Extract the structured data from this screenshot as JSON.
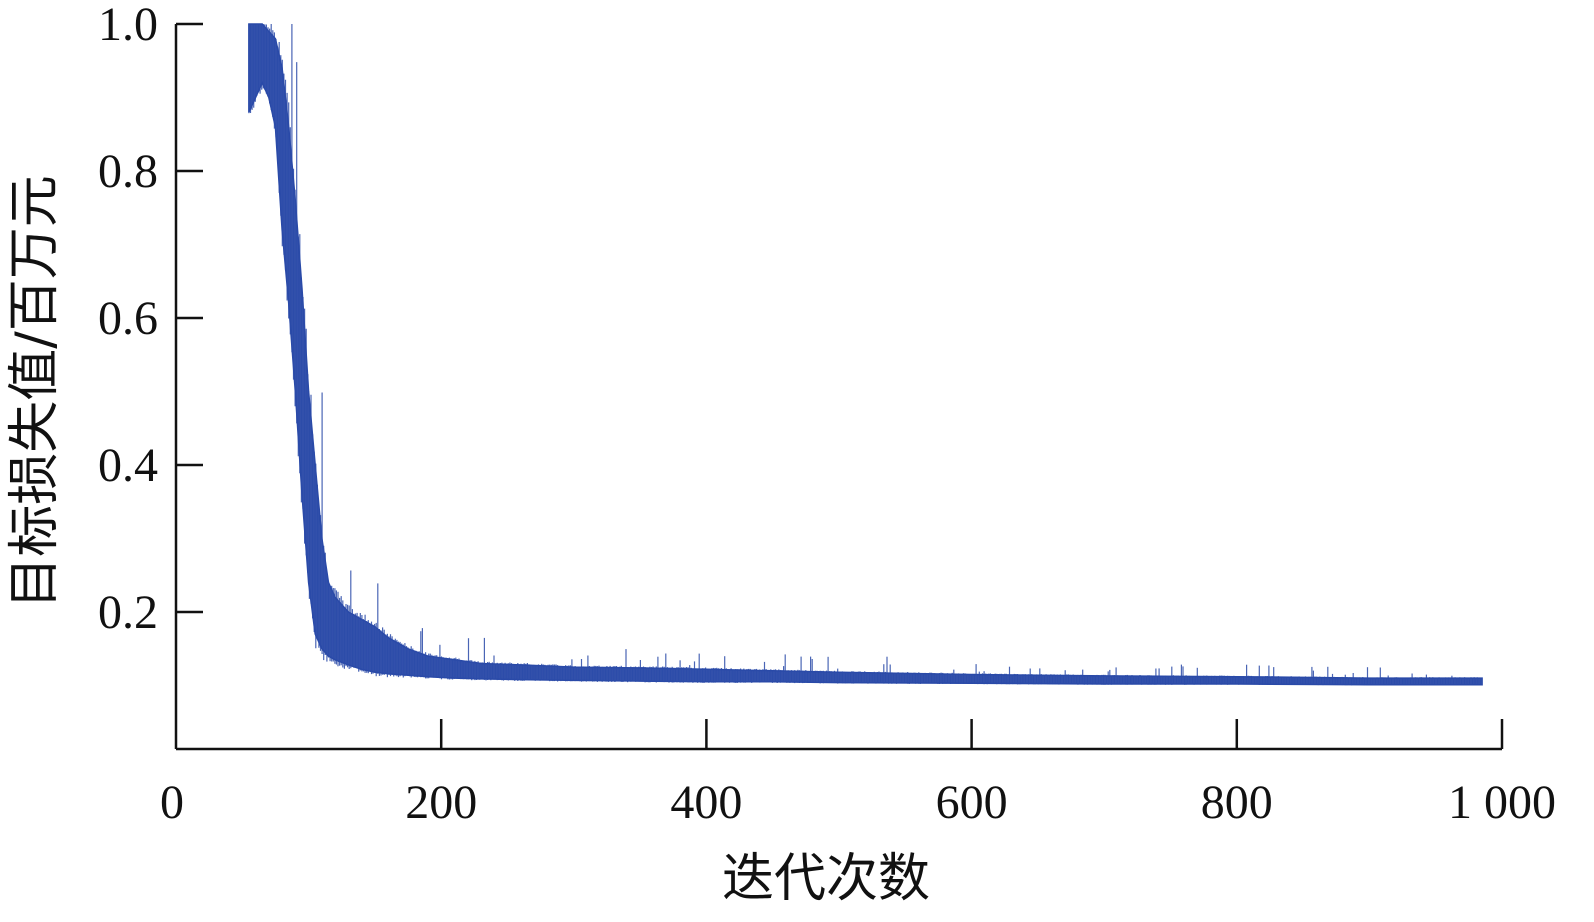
{
  "chart_data": {
    "type": "line",
    "title": "",
    "xlabel": "迭代次数",
    "ylabel": "目标损失值/百万元",
    "xlim": [
      0,
      1000
    ],
    "ylim": [
      0.0,
      1.0
    ],
    "x_ticks": [
      0,
      200,
      400,
      600,
      800,
      1000
    ],
    "x_tick_labels": [
      "0",
      "200",
      "400",
      "600",
      "800",
      "1 000"
    ],
    "y_ticks": [
      0.2,
      0.4,
      0.6,
      0.8,
      1.0
    ],
    "y_tick_labels": [
      "0.2",
      "0.4",
      "0.6",
      "0.8",
      "1.0"
    ],
    "grid": false,
    "series": [
      {
        "color": "#2a4aa8",
        "x": [
          55,
          60,
          65,
          70,
          75,
          80,
          85,
          90,
          95,
          100,
          105,
          110,
          115,
          120,
          130,
          140,
          150,
          160,
          175,
          190,
          210,
          230,
          260,
          300,
          350,
          400,
          450,
          500,
          600,
          700,
          800,
          900,
          985
        ],
        "y_low": [
          0.88,
          0.9,
          0.92,
          0.9,
          0.86,
          0.72,
          0.62,
          0.5,
          0.36,
          0.24,
          0.17,
          0.15,
          0.14,
          0.135,
          0.128,
          0.122,
          0.118,
          0.116,
          0.114,
          0.112,
          0.11,
          0.109,
          0.108,
          0.107,
          0.106,
          0.105,
          0.105,
          0.104,
          0.103,
          0.102,
          0.102,
          0.101,
          0.101
        ],
        "y_high": [
          1.0,
          1.0,
          1.0,
          0.99,
          0.98,
          0.94,
          0.86,
          0.76,
          0.64,
          0.5,
          0.4,
          0.3,
          0.24,
          0.22,
          0.2,
          0.19,
          0.18,
          0.165,
          0.15,
          0.14,
          0.135,
          0.13,
          0.128,
          0.125,
          0.124,
          0.122,
          0.12,
          0.118,
          0.115,
          0.113,
          0.112,
          0.11,
          0.11
        ]
      }
    ]
  }
}
